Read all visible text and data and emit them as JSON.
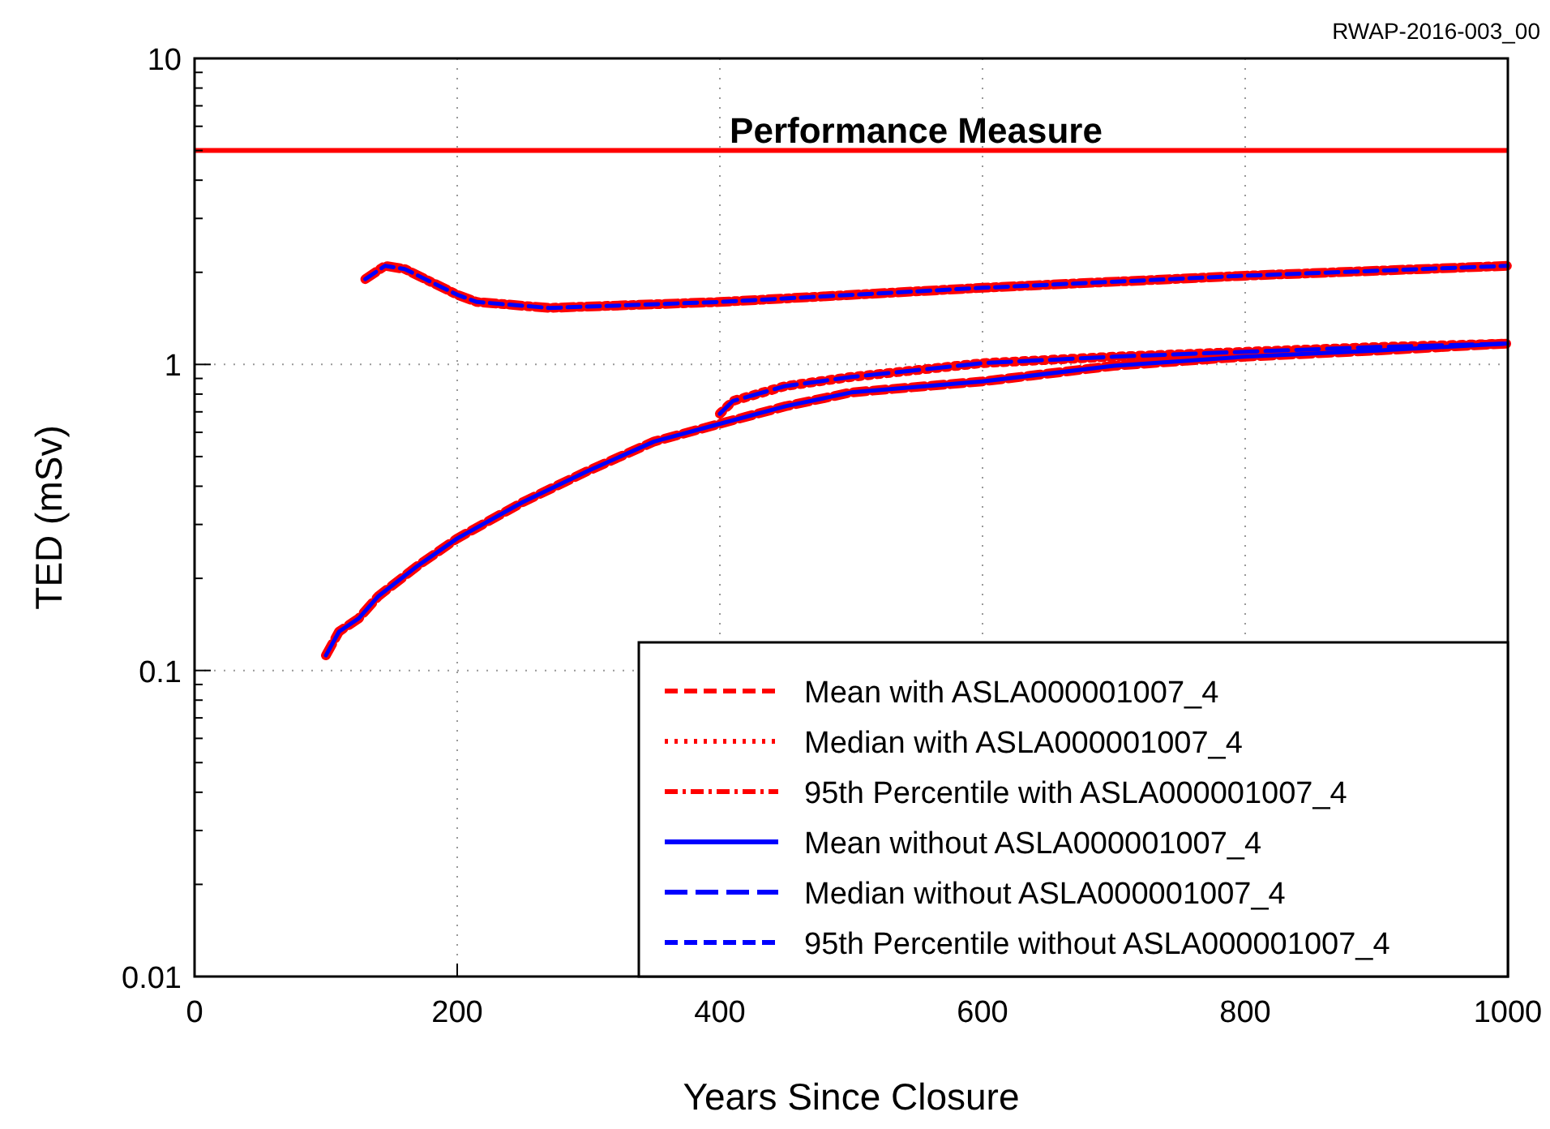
{
  "chart_data": {
    "type": "line",
    "xlabel": "Years Since Closure",
    "ylabel": "TED (mSv)",
    "log": "y",
    "grid": true,
    "legend": "bottom right",
    "xlim": [
      0,
      1000
    ],
    "xticks": [
      0,
      200,
      400,
      600,
      800,
      1000
    ],
    "ylim": [
      0.01,
      10
    ],
    "yticks": [
      0.01,
      0.1,
      1,
      10
    ],
    "ref_lines": [
      {
        "axis": "y",
        "value": 5,
        "label": "Performance Measure",
        "color": "#ff0000"
      }
    ],
    "annotations": [
      "RWAP-2016-003_00"
    ],
    "series": [
      {
        "name": "Mean with ASLA000001007_4",
        "color": "#ff0000",
        "line_style": "dashed",
        "x": [
          100,
          110,
          125,
          140,
          170,
          200,
          250,
          300,
          350,
          400,
          450,
          500,
          600,
          700,
          800,
          900,
          1000
        ],
        "values": [
          0.112,
          0.134,
          0.148,
          0.175,
          0.22,
          0.27,
          0.355,
          0.45,
          0.56,
          0.64,
          0.73,
          0.81,
          0.88,
          0.99,
          1.06,
          1.11,
          1.17
        ]
      },
      {
        "name": "Median with ASLA000001007_4",
        "color": "#ff0000",
        "line_style": "dotted",
        "x": [
          400,
          410,
          450,
          500,
          600,
          700,
          800,
          900,
          1000
        ],
        "values": [
          0.69,
          0.76,
          0.85,
          0.91,
          1.01,
          1.06,
          1.1,
          1.14,
          1.17
        ]
      },
      {
        "name": "95th Percentile with ASLA000001007_4",
        "color": "#ff0000",
        "line_style": "dashdot",
        "x": [
          130,
          145,
          160,
          200,
          215,
          270,
          400,
          600,
          800,
          1000
        ],
        "values": [
          1.9,
          2.1,
          2.05,
          1.69,
          1.6,
          1.53,
          1.6,
          1.78,
          1.95,
          2.1
        ]
      },
      {
        "name": "Mean without ASLA000001007_4",
        "color": "#0000ff",
        "line_style": "solid",
        "x": [
          100,
          110,
          125,
          140,
          170,
          200,
          250,
          300,
          350,
          400,
          450,
          500,
          600,
          700,
          800,
          900,
          1000
        ],
        "values": [
          0.112,
          0.134,
          0.148,
          0.175,
          0.22,
          0.27,
          0.355,
          0.45,
          0.56,
          0.64,
          0.73,
          0.81,
          0.88,
          0.99,
          1.06,
          1.11,
          1.17
        ]
      },
      {
        "name": "Median without ASLA000001007_4",
        "color": "#0000ff",
        "line_style": "longdash",
        "x": [
          400,
          410,
          450,
          500,
          600,
          700,
          800,
          900,
          1000
        ],
        "values": [
          0.69,
          0.76,
          0.85,
          0.91,
          1.01,
          1.06,
          1.1,
          1.14,
          1.17
        ]
      },
      {
        "name": "95th Percentile without ASLA000001007_4",
        "color": "#0000ff",
        "line_style": "dashed",
        "x": [
          130,
          145,
          160,
          200,
          215,
          270,
          400,
          600,
          800,
          1000
        ],
        "values": [
          1.9,
          2.1,
          2.05,
          1.69,
          1.6,
          1.53,
          1.6,
          1.78,
          1.95,
          2.1
        ]
      }
    ]
  }
}
